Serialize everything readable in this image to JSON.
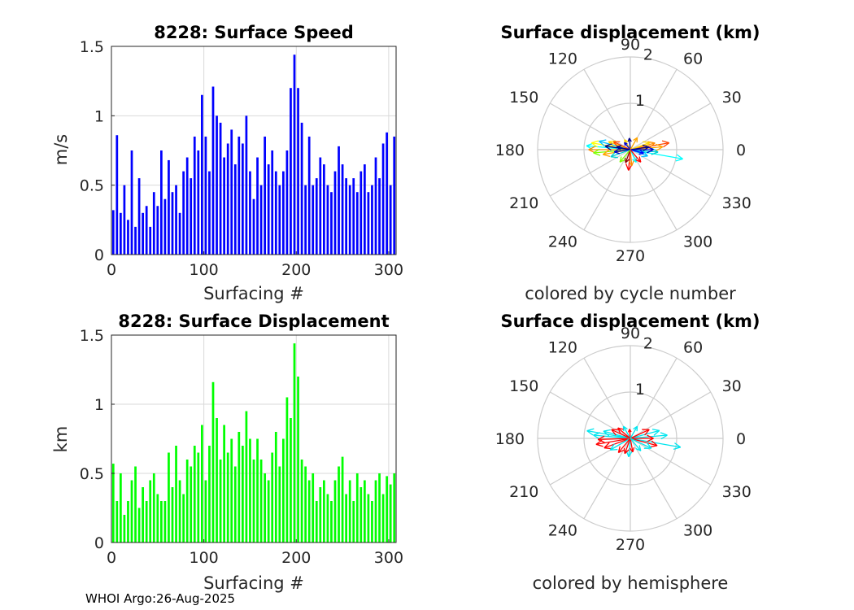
{
  "colors": {
    "speed_bar": "#0000ff",
    "displacement_bar": "#00ff00",
    "north_hemisphere": "#ff0000",
    "south_hemisphere": "#00e5ee",
    "grid": "#d9d9d9",
    "axis": "#262626"
  },
  "footer": "WHOI Argo:26-Aug-2025",
  "chart_data": [
    {
      "id": "speed",
      "type": "bar",
      "title": "8228: Surface Speed",
      "xlabel": "Surfacing #",
      "ylabel": "m/s",
      "xlim": [
        0,
        308
      ],
      "ylim": [
        0,
        1.5
      ],
      "xticks": [
        "0",
        "100",
        "200",
        "300"
      ],
      "yticks": [
        "0",
        "0.5",
        "1",
        "1.5"
      ],
      "x": [
        2,
        6,
        10,
        14,
        18,
        22,
        26,
        30,
        34,
        38,
        42,
        46,
        50,
        54,
        58,
        62,
        66,
        70,
        74,
        78,
        82,
        86,
        90,
        94,
        98,
        102,
        106,
        110,
        114,
        118,
        122,
        126,
        130,
        134,
        138,
        142,
        146,
        150,
        154,
        158,
        162,
        166,
        170,
        174,
        178,
        182,
        186,
        190,
        194,
        198,
        202,
        206,
        210,
        214,
        218,
        222,
        226,
        230,
        234,
        238,
        242,
        246,
        250,
        254,
        258,
        262,
        266,
        270,
        274,
        278,
        282,
        286,
        290,
        294,
        298,
        302,
        306
      ],
      "values": [
        0.32,
        0.86,
        0.3,
        0.5,
        0.25,
        0.75,
        0.2,
        0.55,
        0.3,
        0.35,
        0.2,
        0.45,
        0.35,
        0.75,
        0.4,
        0.68,
        0.45,
        0.5,
        0.3,
        0.6,
        0.7,
        0.55,
        0.85,
        0.75,
        1.15,
        0.85,
        0.6,
        1.21,
        1.0,
        0.95,
        0.7,
        0.8,
        0.9,
        0.65,
        0.85,
        0.8,
        1.0,
        0.6,
        0.4,
        0.7,
        0.5,
        0.85,
        0.65,
        0.75,
        0.6,
        0.5,
        0.6,
        0.75,
        1.2,
        1.44,
        1.2,
        0.95,
        0.5,
        0.85,
        0.5,
        0.55,
        0.7,
        0.65,
        0.5,
        0.45,
        0.6,
        0.78,
        0.65,
        0.55,
        0.5,
        0.55,
        0.45,
        0.6,
        0.65,
        0.45,
        0.5,
        0.7,
        0.55,
        0.8,
        0.88,
        0.5,
        0.85
      ]
    },
    {
      "id": "displacement",
      "type": "bar",
      "title": "8228: Surface Displacement",
      "xlabel": "Surfacing #",
      "ylabel": "km",
      "xlim": [
        0,
        308
      ],
      "ylim": [
        0,
        1.5
      ],
      "xticks": [
        "0",
        "100",
        "200",
        "300"
      ],
      "yticks": [
        "0",
        "0.5",
        "1",
        "1.5"
      ],
      "x": [
        2,
        6,
        10,
        14,
        18,
        22,
        26,
        30,
        34,
        38,
        42,
        46,
        50,
        54,
        58,
        62,
        66,
        70,
        74,
        78,
        82,
        86,
        90,
        94,
        98,
        102,
        106,
        110,
        114,
        118,
        122,
        126,
        130,
        134,
        138,
        142,
        146,
        150,
        154,
        158,
        162,
        166,
        170,
        174,
        178,
        182,
        186,
        190,
        194,
        198,
        202,
        206,
        210,
        214,
        218,
        222,
        226,
        230,
        234,
        238,
        242,
        246,
        250,
        254,
        258,
        262,
        266,
        270,
        274,
        278,
        282,
        286,
        290,
        294,
        298,
        302,
        306
      ],
      "values": [
        0.57,
        0.3,
        0.5,
        0.2,
        0.3,
        0.45,
        0.55,
        0.25,
        0.4,
        0.3,
        0.45,
        0.5,
        0.35,
        0.3,
        0.3,
        0.65,
        0.4,
        0.7,
        0.45,
        0.35,
        0.6,
        0.55,
        0.7,
        0.65,
        0.85,
        0.45,
        0.7,
        1.16,
        0.9,
        0.6,
        0.85,
        0.65,
        0.75,
        0.55,
        0.8,
        0.7,
        0.95,
        0.75,
        0.6,
        0.75,
        0.6,
        0.5,
        0.45,
        0.65,
        0.8,
        0.55,
        0.75,
        1.05,
        0.9,
        1.44,
        1.2,
        0.6,
        0.55,
        0.45,
        0.5,
        0.3,
        0.4,
        0.45,
        0.35,
        0.3,
        0.45,
        0.55,
        0.62,
        0.35,
        0.45,
        0.3,
        0.5,
        0.4,
        0.45,
        0.35,
        0.3,
        0.45,
        0.5,
        0.35,
        0.48,
        0.42,
        0.5
      ]
    },
    {
      "id": "polar-cycle",
      "type": "scatter",
      "title": "Surface displacement (km)",
      "xlabel": "colored by cycle number",
      "rlim": [
        0,
        2
      ],
      "rticks": [
        "1",
        "2"
      ],
      "angle_labels": [
        "0",
        "30",
        "60",
        "90",
        "120",
        "150",
        "180",
        "210",
        "240",
        "270",
        "300",
        "330"
      ],
      "vectors": [
        {
          "angle": 175,
          "r": 0.95,
          "color": "#00ffff"
        },
        {
          "angle": 170,
          "r": 0.85,
          "color": "#ffff00"
        },
        {
          "angle": 180,
          "r": 0.9,
          "color": "#ff8c00"
        },
        {
          "angle": 165,
          "r": 0.7,
          "color": "#00bfff"
        },
        {
          "angle": 185,
          "r": 0.8,
          "color": "#7fff00"
        },
        {
          "angle": 190,
          "r": 0.6,
          "color": "#ffa500"
        },
        {
          "angle": 160,
          "r": 0.5,
          "color": "#ffd700"
        },
        {
          "angle": 200,
          "r": 0.45,
          "color": "#00ced1"
        },
        {
          "angle": 155,
          "r": 0.4,
          "color": "#ff4500"
        },
        {
          "angle": 172,
          "r": 0.55,
          "color": "#00008b"
        },
        {
          "angle": 188,
          "r": 0.35,
          "color": "#0000cd"
        },
        {
          "angle": 168,
          "r": 0.3,
          "color": "#00008b"
        },
        {
          "angle": 350,
          "r": 1.15,
          "color": "#00ffff"
        },
        {
          "angle": 10,
          "r": 0.85,
          "color": "#ff4500"
        },
        {
          "angle": 5,
          "r": 0.7,
          "color": "#ffa500"
        },
        {
          "angle": 355,
          "r": 0.6,
          "color": "#00ced1"
        },
        {
          "angle": 15,
          "r": 0.55,
          "color": "#ff8c00"
        },
        {
          "angle": 20,
          "r": 0.45,
          "color": "#ffd700"
        },
        {
          "angle": 340,
          "r": 0.4,
          "color": "#00bfff"
        },
        {
          "angle": 0,
          "r": 0.5,
          "color": "#0000cd"
        },
        {
          "angle": 8,
          "r": 0.4,
          "color": "#00008b"
        },
        {
          "angle": 345,
          "r": 0.3,
          "color": "#0000ff"
        },
        {
          "angle": 265,
          "r": 0.45,
          "color": "#ff0000"
        },
        {
          "angle": 275,
          "r": 0.35,
          "color": "#ff8c00"
        },
        {
          "angle": 250,
          "r": 0.3,
          "color": "#8b0000"
        },
        {
          "angle": 295,
          "r": 0.3,
          "color": "#00ffff"
        },
        {
          "angle": 95,
          "r": 0.25,
          "color": "#00008b"
        },
        {
          "angle": 60,
          "r": 0.3,
          "color": "#ffa500"
        },
        {
          "angle": 120,
          "r": 0.25,
          "color": "#ffd700"
        },
        {
          "angle": 230,
          "r": 0.35,
          "color": "#7fff00"
        },
        {
          "angle": 310,
          "r": 0.35,
          "color": "#ff0000"
        },
        {
          "angle": 130,
          "r": 0.2,
          "color": "#0000cd"
        }
      ]
    },
    {
      "id": "polar-hemisphere",
      "type": "scatter",
      "title": "Surface displacement (km)",
      "xlabel": "colored by hemisphere",
      "rlim": [
        0,
        2
      ],
      "rticks": [
        "1",
        "2"
      ],
      "angle_labels": [
        "0",
        "30",
        "60",
        "90",
        "120",
        "150",
        "180",
        "210",
        "240",
        "270",
        "300",
        "330"
      ],
      "vectors": [
        {
          "angle": 175,
          "r": 0.8,
          "color": "#00e5ee"
        },
        {
          "angle": 170,
          "r": 0.95,
          "color": "#00e5ee"
        },
        {
          "angle": 182,
          "r": 0.7,
          "color": "#ff0000"
        },
        {
          "angle": 190,
          "r": 0.75,
          "color": "#ff0000"
        },
        {
          "angle": 200,
          "r": 0.6,
          "color": "#ff0000"
        },
        {
          "angle": 165,
          "r": 0.6,
          "color": "#00e5ee"
        },
        {
          "angle": 155,
          "r": 0.45,
          "color": "#ff0000"
        },
        {
          "angle": 210,
          "r": 0.5,
          "color": "#00e5ee"
        },
        {
          "angle": 350,
          "r": 1.1,
          "color": "#00e5ee"
        },
        {
          "angle": 5,
          "r": 0.8,
          "color": "#00e5ee"
        },
        {
          "angle": 15,
          "r": 0.65,
          "color": "#00e5ee"
        },
        {
          "angle": 345,
          "r": 0.6,
          "color": "#ff0000"
        },
        {
          "angle": 0,
          "r": 0.5,
          "color": "#ff0000"
        },
        {
          "angle": 25,
          "r": 0.45,
          "color": "#ff0000"
        },
        {
          "angle": 335,
          "r": 0.5,
          "color": "#00e5ee"
        },
        {
          "angle": 265,
          "r": 0.4,
          "color": "#00e5ee"
        },
        {
          "angle": 250,
          "r": 0.35,
          "color": "#ff0000"
        },
        {
          "angle": 280,
          "r": 0.3,
          "color": "#ff0000"
        },
        {
          "angle": 95,
          "r": 0.2,
          "color": "#ff0000"
        },
        {
          "angle": 60,
          "r": 0.3,
          "color": "#00e5ee"
        },
        {
          "angle": 120,
          "r": 0.3,
          "color": "#00e5ee"
        },
        {
          "angle": 230,
          "r": 0.4,
          "color": "#ff0000"
        },
        {
          "angle": 310,
          "r": 0.35,
          "color": "#00e5ee"
        },
        {
          "angle": 140,
          "r": 0.35,
          "color": "#ff0000"
        }
      ]
    }
  ]
}
